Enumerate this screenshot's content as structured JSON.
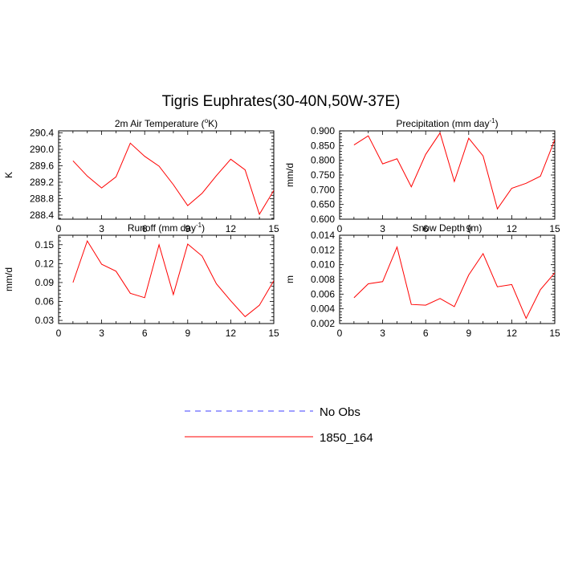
{
  "title": "Tigris Euphrates(30-40N,50W-37E)",
  "colors": {
    "model": "#ff0000",
    "obs": "#0000ff",
    "axis": "#000000"
  },
  "legend": {
    "entries": [
      {
        "label": "No Obs",
        "style": "dashed",
        "color": "#0000ff"
      },
      {
        "label": "1850_164",
        "style": "solid",
        "color": "#ff0000"
      }
    ]
  },
  "chart_data": [
    {
      "type": "line",
      "title_main": "2m Air Temperature (",
      "title_super": "o",
      "title_tail": "K)",
      "ylabel": "K",
      "xlim": [
        0,
        15
      ],
      "ylim": [
        288.3,
        290.45
      ],
      "xticks": [
        "0",
        "3",
        "6",
        "9",
        "12",
        "15"
      ],
      "yticks": [
        "288.4",
        "288.8",
        "289.2",
        "289.6",
        "290.0",
        "290.4"
      ],
      "series": [
        {
          "name": "1850_164",
          "x": [
            1,
            2,
            3,
            4,
            5,
            6,
            7,
            8,
            9,
            10,
            11,
            12,
            13,
            14,
            15
          ],
          "values": [
            289.72,
            289.35,
            289.06,
            289.33,
            290.15,
            289.83,
            289.59,
            289.14,
            288.63,
            288.93,
            289.36,
            289.76,
            289.5,
            288.42,
            289.0
          ]
        }
      ]
    },
    {
      "type": "line",
      "title_main": "Precipitation (mm day",
      "title_super": "-1",
      "title_tail": ")",
      "ylabel": "mm/d",
      "xlim": [
        0,
        15
      ],
      "ylim": [
        0.6,
        0.9
      ],
      "xticks": [
        "0",
        "3",
        "6",
        "9",
        "12",
        "15"
      ],
      "yticks": [
        "0.600",
        "0.650",
        "0.700",
        "0.750",
        "0.800",
        "0.850",
        "0.900"
      ],
      "series": [
        {
          "name": "1850_164",
          "x": [
            1,
            2,
            3,
            4,
            5,
            6,
            7,
            8,
            9,
            10,
            11,
            12,
            13,
            14,
            15
          ],
          "values": [
            0.852,
            0.883,
            0.788,
            0.805,
            0.71,
            0.82,
            0.893,
            0.728,
            0.875,
            0.815,
            0.635,
            0.705,
            0.722,
            0.746,
            0.87
          ]
        }
      ]
    },
    {
      "type": "line",
      "title_main": "Runoff (mm day",
      "title_super": "-1",
      "title_tail": ")",
      "ylabel": "mm/d",
      "xlim": [
        0,
        15
      ],
      "ylim": [
        0.025,
        0.165
      ],
      "xticks": [
        "0",
        "3",
        "6",
        "9",
        "12",
        "15"
      ],
      "yticks": [
        "0.03",
        "0.06",
        "0.09",
        "0.12",
        "0.15"
      ],
      "series": [
        {
          "name": "1850_164",
          "x": [
            1,
            2,
            3,
            4,
            5,
            6,
            7,
            8,
            9,
            10,
            11,
            12,
            13,
            14,
            15
          ],
          "values": [
            0.09,
            0.156,
            0.119,
            0.108,
            0.073,
            0.066,
            0.15,
            0.071,
            0.151,
            0.132,
            0.088,
            0.061,
            0.036,
            0.054,
            0.093
          ]
        }
      ]
    },
    {
      "type": "line",
      "title_main": "Snow Depth (m)",
      "title_super": "",
      "title_tail": "",
      "ylabel": "m",
      "xlim": [
        0,
        15
      ],
      "ylim": [
        0.002,
        0.014
      ],
      "xticks": [
        "0",
        "3",
        "6",
        "9",
        "12",
        "15"
      ],
      "yticks": [
        "0.002",
        "0.004",
        "0.006",
        "0.008",
        "0.010",
        "0.012",
        "0.014"
      ],
      "series": [
        {
          "name": "1850_164",
          "x": [
            1,
            2,
            3,
            4,
            5,
            6,
            7,
            8,
            9,
            10,
            11,
            12,
            13,
            14,
            15
          ],
          "values": [
            0.0055,
            0.0074,
            0.0077,
            0.0124,
            0.0046,
            0.0045,
            0.0054,
            0.0043,
            0.0086,
            0.0115,
            0.007,
            0.0073,
            0.0027,
            0.0066,
            0.0089
          ]
        }
      ]
    }
  ]
}
